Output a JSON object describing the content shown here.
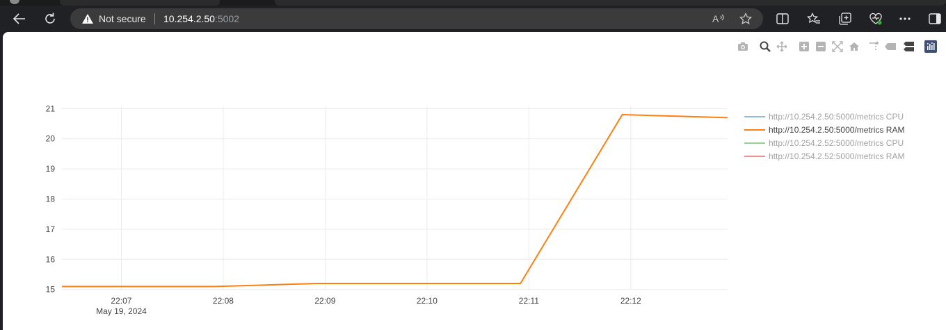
{
  "browser": {
    "security_label": "Not secure",
    "url_host": "10.254.2.50",
    "url_port": ":5002",
    "icons": [
      "back-arrow-icon",
      "refresh-icon",
      "warning-icon",
      "read-aloud-icon",
      "favorite-star-icon",
      "split-screen-icon",
      "favorites-icon",
      "collections-icon",
      "browser-essentials-icon",
      "more-icon",
      "sidebar-icon"
    ]
  },
  "modebar": {
    "icons": [
      "camera-icon",
      "zoom-icon",
      "pan-icon",
      "zoom-in-icon",
      "zoom-out-icon",
      "autoscale-icon",
      "reset-axes-icon",
      "spike-lines-icon",
      "hover-closest-icon",
      "hover-compare-icon",
      "plotly-logo-icon"
    ]
  },
  "chart_data": {
    "type": "line",
    "title": "",
    "xlabel": "",
    "ylabel": "",
    "x_tick_labels": [
      "22:07",
      "22:08",
      "22:09",
      "22:10",
      "22:11",
      "22:12"
    ],
    "x_date_label": "May 19, 2024",
    "y_ticks": [
      15,
      16,
      17,
      18,
      19,
      20,
      21
    ],
    "ylim": [
      14.97,
      21.1
    ],
    "xlim": [
      "22:06:25",
      "22:12:57"
    ],
    "grid": true,
    "legend_position": "right",
    "series": [
      {
        "name": "http://10.254.2.50:5000/metrics CPU",
        "color": "#1f77b4",
        "visible": false,
        "x": [],
        "y": []
      },
      {
        "name": "http://10.254.2.50:5000/metrics RAM",
        "color": "#ff7f0e",
        "visible": true,
        "x": [
          "22:06:25",
          "22:07:55",
          "22:08:55",
          "22:10:55",
          "22:11:55",
          "22:12:57"
        ],
        "y": [
          15.1,
          15.1,
          15.2,
          15.2,
          20.8,
          20.7
        ]
      },
      {
        "name": "http://10.254.2.52:5000/metrics CPU",
        "color": "#2ca02c",
        "visible": false,
        "x": [],
        "y": []
      },
      {
        "name": "http://10.254.2.52:5000/metrics RAM",
        "color": "#d62728",
        "visible": false,
        "x": [],
        "y": []
      }
    ]
  }
}
